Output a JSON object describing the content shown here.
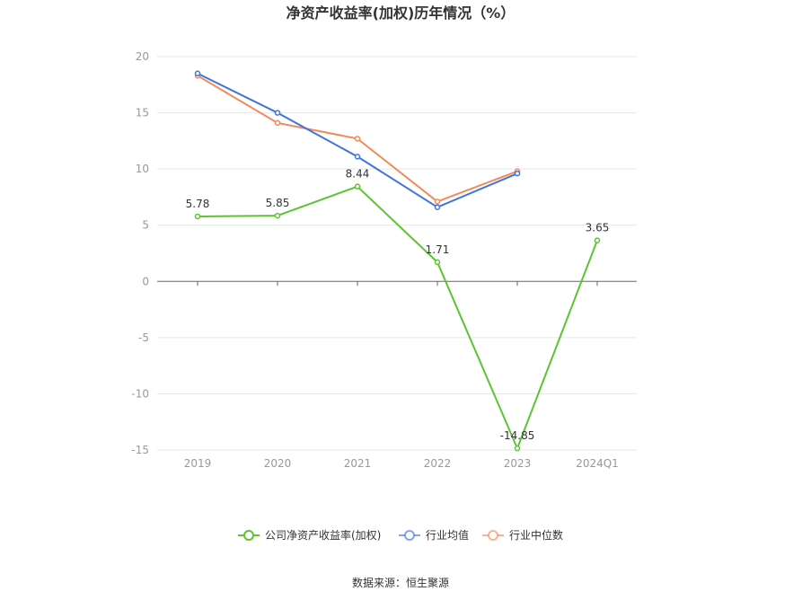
{
  "chart_data": {
    "type": "line",
    "title": "净资产收益率(加权)历年情况（%）",
    "categories": [
      "2019",
      "2020",
      "2021",
      "2022",
      "2023",
      "2024Q1"
    ],
    "y_ticks": [
      "20",
      "15",
      "10",
      "5",
      "0",
      "-5",
      "-10",
      "-15"
    ],
    "ylim": [
      -15,
      20
    ],
    "grid": true,
    "legend_position": "bottom",
    "series": [
      {
        "name": "公司净资产收益率(加权)",
        "color": "#5cc431",
        "values": [
          5.78,
          5.85,
          8.44,
          1.71,
          -14.85,
          3.65
        ],
        "labels": [
          "5.78",
          "5.85",
          "8.44",
          "1.71",
          "-14.85",
          "3.65"
        ]
      },
      {
        "name": "行业均值",
        "color": "#3f74e0",
        "values": [
          18.5,
          15.0,
          11.1,
          6.6,
          9.6,
          null
        ]
      },
      {
        "name": "行业中位数",
        "color": "#f48a5c",
        "values": [
          18.3,
          14.1,
          12.7,
          7.1,
          9.8,
          null
        ]
      }
    ],
    "source": "数据来源：恒生聚源"
  }
}
